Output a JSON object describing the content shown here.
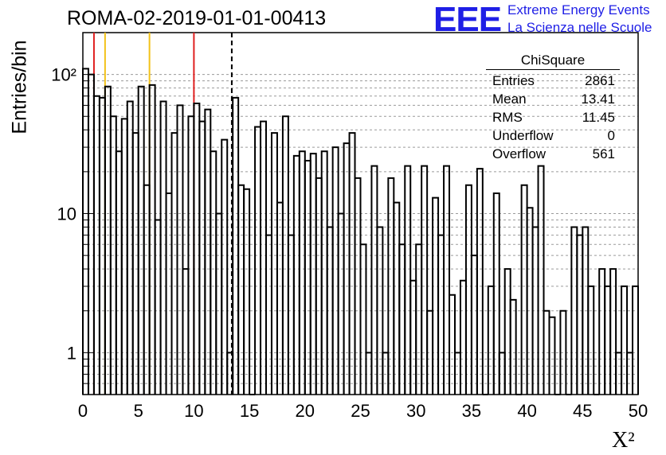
{
  "title": "ROMA-02-2019-01-01-00413",
  "logo": {
    "mark": "EEE",
    "line1": "Extreme Energy Events",
    "line2": "La Scienza nelle Scuole"
  },
  "stats": {
    "name": "ChiSquare",
    "rows": [
      {
        "label": "Entries",
        "value": "2861"
      },
      {
        "label": "Mean",
        "value": "13.41"
      },
      {
        "label": "RMS",
        "value": "11.45"
      },
      {
        "label": "Underflow",
        "value": "0"
      },
      {
        "label": "Overflow",
        "value": "561"
      }
    ]
  },
  "colors": {
    "red_line": "#e02020",
    "yellow_line": "#f2c21a",
    "hist": "#000000"
  },
  "chart_data": {
    "type": "bar",
    "xlabel": "X²",
    "ylabel": "Entries/bin",
    "xlim": [
      0,
      50
    ],
    "ylim": [
      0.5,
      200
    ],
    "log_y": true,
    "bin_width": 0.5,
    "x_ticks": [
      "0",
      "5",
      "10",
      "15",
      "20",
      "25",
      "30",
      "35",
      "40",
      "45",
      "50"
    ],
    "y_ticks": [
      "1",
      "10",
      "10²"
    ],
    "grid_y": true,
    "values": [
      110,
      100,
      70,
      68,
      82,
      50,
      28,
      48,
      64,
      38,
      82,
      16,
      84,
      9,
      64,
      14,
      38,
      60,
      4,
      50,
      62,
      46,
      56,
      28,
      10,
      34,
      1,
      68,
      16,
      15,
      0.5,
      42,
      46,
      7,
      38,
      12,
      50,
      7,
      26,
      28,
      24,
      27,
      18,
      28,
      8,
      30,
      10,
      32,
      38,
      18,
      6,
      1,
      22,
      8,
      1,
      18,
      12,
      6,
      22,
      3.3,
      6,
      22,
      2.0,
      13,
      7,
      22,
      2.6,
      1,
      3.3,
      16,
      5,
      21,
      0.5,
      3,
      14,
      1,
      4,
      2.4,
      0.5,
      16,
      11,
      8,
      22,
      2.0,
      1.8,
      0.5,
      2,
      0.5,
      8,
      7,
      8,
      3,
      0.5,
      4,
      3,
      4,
      1,
      3,
      1,
      3
    ],
    "annotations": [
      {
        "type": "vline",
        "x": 1,
        "color": "red"
      },
      {
        "type": "vline",
        "x": 2,
        "color": "yellow"
      },
      {
        "type": "vline",
        "x": 6,
        "color": "yellow"
      },
      {
        "type": "vline",
        "x": 10,
        "color": "red"
      },
      {
        "type": "vline",
        "x": 13.41,
        "style": "dashed",
        "color": "black"
      }
    ]
  }
}
